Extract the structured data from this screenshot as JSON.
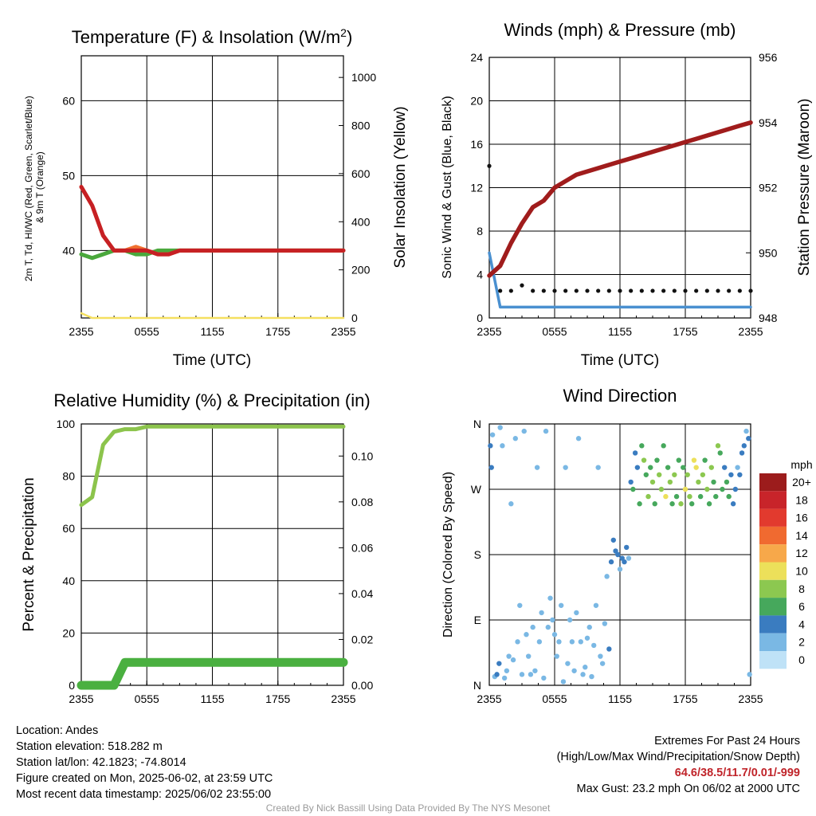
{
  "chart_data": [
    {
      "id": "temp",
      "type": "line",
      "title": "Temperature (F) & Insolation (W/m²)",
      "title_main": "Temperature (F) & Insolation (W/m",
      "title_sup": "2",
      "title_end": ")",
      "xlabel": "Time (UTC)",
      "ylabel_line1": "2m T, Td, HI/WC (Red, Green, Scarlet/Blue)",
      "ylabel_line2": "& 9m T (Orange)",
      "y2label": "Solar Insolation (Yellow)",
      "xticks": [
        "2355",
        "0555",
        "1155",
        "1755",
        "2355"
      ],
      "ylim": [
        31,
        66
      ],
      "yticks": [
        40,
        50,
        60
      ],
      "y2lim": [
        0,
        1090
      ],
      "y2ticks": [
        0,
        200,
        400,
        600,
        800,
        1000
      ],
      "grid": true,
      "series": [
        {
          "color": "#f5e060",
          "axis": "right",
          "x": [
            0,
            1,
            2,
            3,
            4,
            5,
            6,
            7,
            8,
            9,
            10,
            11,
            12,
            13,
            14,
            15,
            16,
            17,
            18,
            19,
            20,
            21,
            22,
            23,
            24
          ],
          "values": [
            20,
            0,
            0,
            0,
            0,
            0,
            0,
            0,
            0,
            0,
            0,
            0,
            0,
            0,
            0,
            0,
            0,
            0,
            0,
            0,
            0,
            0,
            0,
            0,
            0
          ]
        },
        {
          "color": "#4aa83c",
          "x": [
            0,
            1,
            2,
            3,
            4,
            5,
            6,
            7,
            8,
            9,
            10,
            11,
            12,
            13,
            14,
            15,
            16,
            17,
            18,
            19,
            20,
            21,
            22,
            23,
            24
          ],
          "values": [
            39.5,
            39,
            39.5,
            40,
            40,
            39.5,
            39.5,
            40,
            40,
            40,
            40,
            40,
            40,
            40,
            40,
            40,
            40,
            40,
            40,
            40,
            40,
            40,
            40,
            40,
            40
          ]
        },
        {
          "color": "#f07030",
          "x": [
            0,
            1,
            2,
            3,
            4,
            5,
            6,
            7,
            8,
            9,
            10,
            11,
            12,
            13,
            14,
            15,
            16,
            17,
            18,
            19,
            20,
            21,
            22,
            23,
            24
          ],
          "values": [
            48.5,
            46,
            42,
            40,
            40,
            40.5,
            40,
            39.5,
            39.5,
            40,
            40,
            40,
            40,
            40,
            40,
            40,
            40,
            40,
            40,
            40,
            40,
            40,
            40,
            40,
            40
          ]
        },
        {
          "color": "#c62024",
          "x": [
            0,
            1,
            2,
            3,
            4,
            5,
            6,
            7,
            8,
            9,
            10,
            11,
            12,
            13,
            14,
            15,
            16,
            17,
            18,
            19,
            20,
            21,
            22,
            23,
            24
          ],
          "values": [
            48.5,
            46,
            42,
            40,
            40,
            40,
            40,
            39.5,
            39.5,
            40,
            40,
            40,
            40,
            40,
            40,
            40,
            40,
            40,
            40,
            40,
            40,
            40,
            40,
            40,
            40
          ]
        }
      ]
    },
    {
      "id": "wind",
      "type": "line",
      "title": "Winds (mph) & Pressure (mb)",
      "xlabel": "Time (UTC)",
      "ylabel": "Sonic Wind & Gust (Blue, Black)",
      "y2label": "Station Pressure (Maroon)",
      "xticks": [
        "2355",
        "0555",
        "1155",
        "1755",
        "2355"
      ],
      "ylim": [
        0,
        24
      ],
      "yticks": [
        0,
        4,
        8,
        12,
        16,
        20,
        24
      ],
      "y2lim": [
        948,
        956
      ],
      "y2ticks": [
        948,
        950,
        952,
        954,
        956
      ],
      "grid": true,
      "series": [
        {
          "color": "#4a90d0",
          "x": [
            0,
            1,
            2,
            3,
            4,
            5,
            6,
            7,
            8,
            9,
            10,
            11,
            12,
            13,
            14,
            15,
            16,
            17,
            18,
            19,
            20,
            21,
            22,
            23,
            24
          ],
          "values": [
            6,
            1,
            1,
            1,
            1,
            1,
            1,
            1,
            1,
            1,
            1,
            1,
            1,
            1,
            1,
            1,
            1,
            1,
            1,
            1,
            1,
            1,
            1,
            1,
            1
          ]
        },
        {
          "color": "#111111",
          "x": [
            0,
            1,
            2,
            3,
            4,
            5,
            6,
            7,
            8,
            9,
            10,
            11,
            12,
            13,
            14,
            15,
            16,
            17,
            18,
            19,
            20,
            21,
            22,
            23,
            24
          ],
          "values": [
            14,
            2.5,
            2.5,
            3,
            2.5,
            2.5,
            2.5,
            2.5,
            2.5,
            2.5,
            2.5,
            2.5,
            2.5,
            2.5,
            2.5,
            2.5,
            2.5,
            2.5,
            2.5,
            2.5,
            2.5,
            2.5,
            2.5,
            2.5,
            2.5
          ]
        },
        {
          "color": "#a01c1c",
          "axis": "right",
          "x": [
            0,
            1,
            2,
            3,
            4,
            5,
            6,
            7,
            8,
            9,
            10,
            11,
            12,
            13,
            14,
            15,
            16,
            17,
            18,
            19,
            20,
            21,
            22,
            23,
            24
          ],
          "values": [
            949.3,
            949.6,
            950.3,
            950.9,
            951.4,
            951.6,
            952.0,
            952.2,
            952.4,
            952.5,
            952.6,
            952.7,
            952.8,
            952.9,
            953.0,
            953.1,
            953.2,
            953.3,
            953.4,
            953.5,
            953.6,
            953.7,
            953.8,
            953.9,
            954.0
          ]
        }
      ]
    },
    {
      "id": "rh",
      "type": "line",
      "title": "Relative Humidity (%) & Precipitation (in)",
      "ylabel": "Percent & Precipitation",
      "xticks": [
        "2355",
        "0555",
        "1155",
        "1755",
        "2355"
      ],
      "ylim": [
        0,
        100
      ],
      "yticks": [
        0,
        20,
        40,
        60,
        80,
        100
      ],
      "y2lim": [
        0,
        0.114
      ],
      "y2ticks": [
        "0.00",
        "0.02",
        "0.04",
        "0.06",
        "0.08",
        "0.10"
      ],
      "grid": true,
      "series": [
        {
          "color": "#8cc44c",
          "x": [
            0,
            1,
            2,
            3,
            4,
            5,
            6,
            7,
            8,
            9,
            10,
            11,
            12,
            13,
            14,
            15,
            16,
            17,
            18,
            19,
            20,
            21,
            22,
            23,
            24
          ],
          "values": [
            69,
            72,
            92,
            97,
            98,
            98,
            99,
            99,
            99,
            99,
            99,
            99,
            99,
            99,
            99,
            99,
            99,
            99,
            99,
            99,
            99,
            99,
            99,
            99,
            99
          ]
        },
        {
          "color": "#4ab040",
          "axis": "right",
          "x": [
            0,
            1,
            2,
            3,
            4,
            5,
            6,
            7,
            8,
            9,
            10,
            11,
            12,
            13,
            14,
            15,
            16,
            17,
            18,
            19,
            20,
            21,
            22,
            23,
            24
          ],
          "values": [
            0,
            0,
            0,
            0,
            0.01,
            0.01,
            0.01,
            0.01,
            0.01,
            0.01,
            0.01,
            0.01,
            0.01,
            0.01,
            0.01,
            0.01,
            0.01,
            0.01,
            0.01,
            0.01,
            0.01,
            0.01,
            0.01,
            0.01,
            0.01
          ]
        }
      ]
    },
    {
      "id": "dir",
      "type": "scatter",
      "title": "Wind Direction",
      "ylabel": "Direction (Colored By Speed)",
      "xticks": [
        "2355",
        "0555",
        "1155",
        "1755",
        "2355"
      ],
      "yticks": [
        "N",
        "E",
        "S",
        "W",
        "N"
      ],
      "ylim": [
        0,
        360
      ],
      "grid": true,
      "legend_title": "mph",
      "legend_labels": [
        "20+",
        "18",
        "16",
        "14",
        "12",
        "10",
        "8",
        "6",
        "4",
        "2",
        "0"
      ],
      "legend_colors": [
        "#9c1c1c",
        "#c8242a",
        "#e23a2e",
        "#f06a30",
        "#f7a84a",
        "#ece05a",
        "#8cc850",
        "#46a85c",
        "#3a7cc0",
        "#7ab8e4",
        "#bfe2f7"
      ],
      "x": [
        0.1,
        0.2,
        0.3,
        0.5,
        0.7,
        0.9,
        1.0,
        1.2,
        1.4,
        1.6,
        1.8,
        2.0,
        2.2,
        2.4,
        2.6,
        2.8,
        3.0,
        3.2,
        3.4,
        3.6,
        3.8,
        4.0,
        4.2,
        4.4,
        4.6,
        4.8,
        5.0,
        5.2,
        5.4,
        5.6,
        5.8,
        6.0,
        6.2,
        6.4,
        6.6,
        6.8,
        7.0,
        7.2,
        7.4,
        7.6,
        7.8,
        8.0,
        8.2,
        8.4,
        8.6,
        8.8,
        9.0,
        9.2,
        9.4,
        9.6,
        9.8,
        10.0,
        10.2,
        10.4,
        10.6,
        10.8,
        11.0,
        11.2,
        11.4,
        11.6,
        11.8,
        12.0,
        12.2,
        12.4,
        12.6,
        12.8,
        13.0,
        13.2,
        13.4,
        13.6,
        13.8,
        14.0,
        14.2,
        14.4,
        14.6,
        14.8,
        15.0,
        15.2,
        15.4,
        15.6,
        15.8,
        16.0,
        16.2,
        16.4,
        16.6,
        16.8,
        17.0,
        17.2,
        17.4,
        17.6,
        17.8,
        18.0,
        18.2,
        18.4,
        18.6,
        18.8,
        19.0,
        19.2,
        19.4,
        19.6,
        19.8,
        20.0,
        20.2,
        20.4,
        20.6,
        20.8,
        21.0,
        21.2,
        21.4,
        21.6,
        21.8,
        22.0,
        22.2,
        22.4,
        22.6,
        22.8,
        23.0,
        23.2,
        23.4,
        23.6,
        23.8,
        23.9
      ],
      "directions": [
        330,
        300,
        345,
        12,
        15,
        30,
        355,
        330,
        10,
        20,
        40,
        250,
        35,
        340,
        60,
        110,
        15,
        350,
        70,
        40,
        15,
        80,
        20,
        300,
        60,
        100,
        10,
        350,
        80,
        120,
        90,
        70,
        40,
        60,
        110,
        5,
        300,
        30,
        90,
        60,
        20,
        100,
        340,
        60,
        15,
        25,
        65,
        80,
        12,
        55,
        110,
        300,
        40,
        30,
        85,
        150,
        50,
        170,
        200,
        185,
        180,
        160,
        175,
        170,
        190,
        175,
        280,
        270,
        320,
        300,
        250,
        330,
        310,
        290,
        260,
        300,
        280,
        250,
        310,
        290,
        270,
        330,
        260,
        300,
        280,
        250,
        290,
        260,
        310,
        250,
        300,
        270,
        290,
        260,
        250,
        310,
        300,
        280,
        260,
        290,
        310,
        270,
        250,
        300,
        280,
        260,
        330,
        320,
        270,
        300,
        280,
        260,
        290,
        250,
        270,
        300,
        290,
        320,
        330,
        350,
        340,
        15
      ],
      "speeds": [
        3,
        4,
        2,
        1,
        3,
        4,
        2,
        1,
        1,
        2,
        2,
        1,
        1,
        1,
        2,
        1,
        2,
        1,
        1,
        2,
        1,
        2,
        1,
        2,
        1,
        2,
        1,
        2,
        1,
        2,
        1,
        2,
        1,
        1,
        2,
        1,
        2,
        1,
        2,
        1,
        1,
        2,
        1,
        2,
        1,
        1,
        2,
        1,
        1,
        2,
        1,
        2,
        1,
        2,
        1,
        2,
        3,
        4,
        3,
        4,
        3,
        2,
        3,
        4,
        3,
        2,
        4,
        5,
        4,
        3,
        6,
        5,
        7,
        6,
        8,
        5,
        7,
        6,
        5,
        8,
        7,
        6,
        9,
        5,
        7,
        6,
        8,
        6,
        5,
        7,
        6,
        10,
        8,
        7,
        6,
        9,
        10,
        7,
        6,
        8,
        5,
        7,
        6,
        8,
        6,
        5,
        7,
        6,
        5,
        4,
        6,
        5,
        4,
        3,
        4,
        2,
        3,
        4,
        3,
        2,
        3,
        2
      ]
    }
  ],
  "info": {
    "location": "Location: Andes",
    "elevation": "Station elevation: 518.282 m",
    "latlon": "Station lat/lon: 42.1823; -74.8014",
    "created": "Figure created on Mon, 2025-06-02, at 23:59 UTC",
    "recent": "Most recent data timestamp: 2025/06/02 23:55:00"
  },
  "extremes": {
    "heading": "Extremes For Past 24 Hours",
    "subheading": "(High/Low/Max Wind/Precipitation/Snow Depth)",
    "values": "64.6/38.5/11.7/0.01/-999",
    "gust": "Max Gust: 23.2 mph On 06/02 at 2000 UTC"
  },
  "credit": "Created By Nick Bassill Using Data Provided By The NYS Mesonet"
}
